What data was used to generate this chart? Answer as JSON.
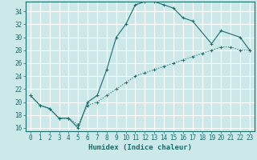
{
  "title": "",
  "xlabel": "Humidex (Indice chaleur)",
  "ylabel": "",
  "bg_color": "#cde8e8",
  "grid_color": "#ffffff",
  "line_color": "#1a6b6b",
  "xlim": [
    -0.5,
    23.5
  ],
  "ylim": [
    15.5,
    35.5
  ],
  "xticks": [
    0,
    1,
    2,
    3,
    4,
    5,
    6,
    7,
    8,
    9,
    10,
    11,
    12,
    13,
    14,
    15,
    16,
    17,
    18,
    19,
    20,
    21,
    22,
    23
  ],
  "yticks": [
    16,
    18,
    20,
    22,
    24,
    26,
    28,
    30,
    32,
    34
  ],
  "line1_x": [
    0,
    1,
    2,
    3,
    4,
    5,
    6,
    7,
    8,
    9,
    10,
    11,
    12,
    13,
    14,
    15,
    16,
    17,
    19,
    20,
    22,
    23
  ],
  "line1_y": [
    21,
    19.5,
    19,
    17.5,
    17.5,
    16,
    20,
    21,
    25,
    30,
    32,
    35,
    35.5,
    35.5,
    35,
    34.5,
    33,
    32.5,
    29,
    31,
    30,
    28
  ],
  "line2_x": [
    0,
    1,
    2,
    3,
    4,
    5,
    6,
    7,
    8,
    9,
    10,
    11,
    12,
    13,
    14,
    15,
    16,
    17,
    18,
    19,
    20,
    21,
    22,
    23
  ],
  "line2_y": [
    21,
    19.5,
    19,
    17.5,
    17.5,
    16.5,
    19.5,
    20,
    21,
    22,
    23,
    24,
    24.5,
    25,
    25.5,
    26,
    26.5,
    27,
    27.5,
    28,
    28.5,
    28.5,
    28,
    28
  ],
  "marker_size": 3,
  "linewidth": 0.8,
  "tick_fontsize": 5.5,
  "xlabel_fontsize": 6.5
}
